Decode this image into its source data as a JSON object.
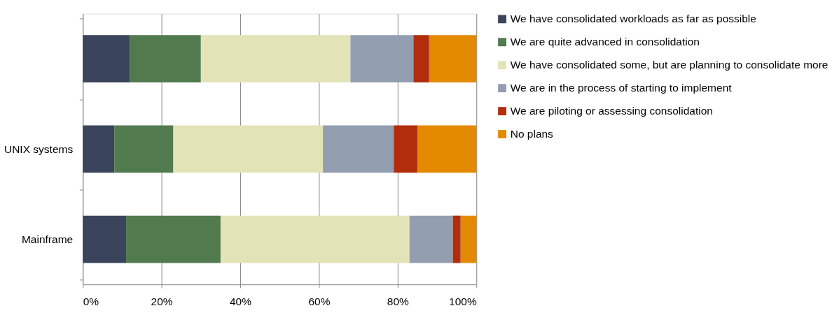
{
  "chart_data": {
    "type": "bar",
    "orientation": "horizontal",
    "stacked": true,
    "categories": [
      null,
      "UNIX systems",
      "Mainframe"
    ],
    "series": [
      {
        "name": "We have consolidated workloads as far as possible",
        "color": "#3a455b",
        "values": [
          12,
          8,
          11
        ]
      },
      {
        "name": "We are quite advanced in consolidation",
        "color": "#527a4f",
        "values": [
          18,
          15,
          24
        ]
      },
      {
        "name": "We have consolidated some, but are planning to consolidate more",
        "color": "#e3e3b8",
        "values": [
          38,
          38,
          48
        ]
      },
      {
        "name": "We are in the process of starting to implement",
        "color": "#939fb1",
        "values": [
          16,
          18,
          11
        ]
      },
      {
        "name": "We are piloting or assessing consolidation",
        "color": "#b22d0c",
        "values": [
          4,
          6,
          2
        ]
      },
      {
        "name": "No plans",
        "color": "#e38a00",
        "values": [
          12,
          15,
          4
        ]
      }
    ],
    "xlim": [
      0,
      100
    ],
    "xticks": [
      {
        "value": 0,
        "label": "0%"
      },
      {
        "value": 20,
        "label": "20%"
      },
      {
        "value": 40,
        "label": "40%"
      },
      {
        "value": 60,
        "label": "60%"
      },
      {
        "value": 80,
        "label": "80%"
      },
      {
        "value": 100,
        "label": "100%"
      }
    ],
    "grid": "x",
    "legend": "right"
  }
}
